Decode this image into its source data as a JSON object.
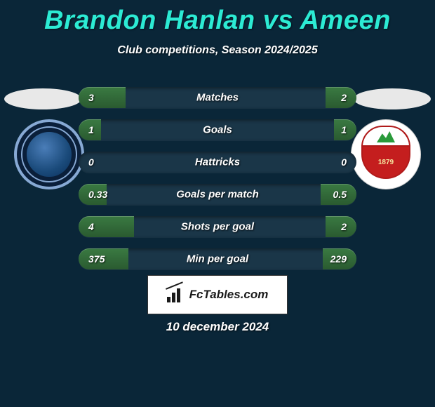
{
  "header": {
    "title": "Brandon Hanlan vs Ameen",
    "subtitle": "Club competitions, Season 2024/2025",
    "title_color": "#2cebd4",
    "title_fontsize": 38,
    "subtitle_color": "#ffffff",
    "subtitle_fontsize": 16
  },
  "background_color": "#0a2638",
  "row_bg_color": "#1a3648",
  "fill_color_top": "#3a7a42",
  "fill_color_bottom": "#2a5a30",
  "value_color": "#ffffff",
  "label_color": "#ffffff",
  "player1": {
    "side": "left",
    "badge_outer_color": "#87a9d4",
    "badge_bg": "#0a1f3a"
  },
  "player2": {
    "side": "right",
    "badge_bg": "#ffffff",
    "shield_border": "#b01a1a",
    "shield_fill": "#c41e1e",
    "shield_year": "1879"
  },
  "stats": [
    {
      "label": "Matches",
      "left_val": "3",
      "right_val": "2",
      "left_pct": 17,
      "right_pct": 11
    },
    {
      "label": "Goals",
      "left_val": "1",
      "right_val": "1",
      "left_pct": 8,
      "right_pct": 8
    },
    {
      "label": "Hattricks",
      "left_val": "0",
      "right_val": "0",
      "left_pct": 0,
      "right_pct": 0
    },
    {
      "label": "Goals per match",
      "left_val": "0.33",
      "right_val": "0.5",
      "left_pct": 10,
      "right_pct": 13
    },
    {
      "label": "Shots per goal",
      "left_val": "4",
      "right_val": "2",
      "left_pct": 20,
      "right_pct": 11
    },
    {
      "label": "Min per goal",
      "left_val": "375",
      "right_val": "229",
      "left_pct": 18,
      "right_pct": 12
    }
  ],
  "brand": {
    "text": "FcTables.com",
    "box_bg": "#ffffff",
    "text_color": "#1a1a1a"
  },
  "date": "10 december 2024"
}
